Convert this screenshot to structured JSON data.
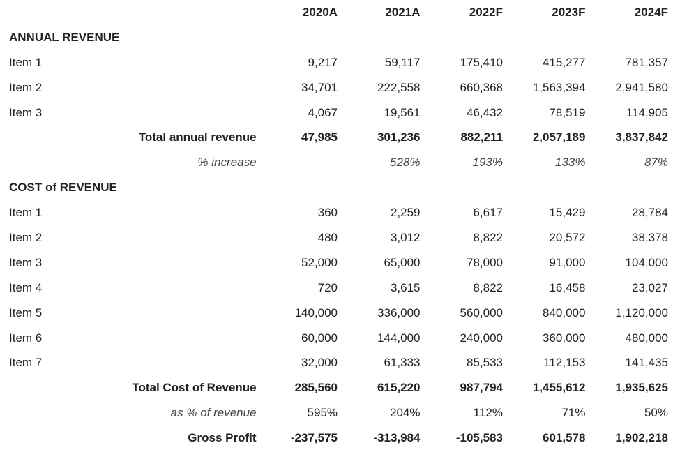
{
  "columns": [
    "2020A",
    "2021A",
    "2022F",
    "2023F",
    "2024F"
  ],
  "annual_revenue": {
    "header": "ANNUAL REVENUE",
    "items": [
      {
        "label": "Item 1",
        "values": [
          "9,217",
          "59,117",
          "175,410",
          "415,277",
          "781,357"
        ]
      },
      {
        "label": "Item 2",
        "values": [
          "34,701",
          "222,558",
          "660,368",
          "1,563,394",
          "2,941,580"
        ]
      },
      {
        "label": "Item 3",
        "values": [
          "4,067",
          "19,561",
          "46,432",
          "78,519",
          "114,905"
        ]
      }
    ],
    "total": {
      "label": "Total annual revenue",
      "values": [
        "47,985",
        "301,236",
        "882,211",
        "2,057,189",
        "3,837,842"
      ]
    },
    "increase": {
      "label": "% increase",
      "values": [
        "",
        "528%",
        "193%",
        "133%",
        "87%"
      ]
    }
  },
  "cost_of_revenue": {
    "header": "COST of REVENUE",
    "items": [
      {
        "label": "Item 1",
        "values": [
          "360",
          "2,259",
          "6,617",
          "15,429",
          "28,784"
        ]
      },
      {
        "label": "Item 2",
        "values": [
          "480",
          "3,012",
          "8,822",
          "20,572",
          "38,378"
        ]
      },
      {
        "label": "Item 3",
        "values": [
          "52,000",
          "65,000",
          "78,000",
          "91,000",
          "104,000"
        ]
      },
      {
        "label": "Item 4",
        "values": [
          "720",
          "3,615",
          "8,822",
          "16,458",
          "23,027"
        ]
      },
      {
        "label": "Item 5",
        "values": [
          "140,000",
          "336,000",
          "560,000",
          "840,000",
          "1,120,000"
        ]
      },
      {
        "label": "Item 6",
        "values": [
          "60,000",
          "144,000",
          "240,000",
          "360,000",
          "480,000"
        ]
      },
      {
        "label": "Item 7",
        "values": [
          "32,000",
          "61,333",
          "85,533",
          "112,153",
          "141,435"
        ]
      }
    ],
    "total": {
      "label": "Total Cost of Revenue",
      "values": [
        "285,560",
        "615,220",
        "987,794",
        "1,455,612",
        "1,935,625"
      ]
    },
    "pct_of_revenue": {
      "label": "as % of revenue",
      "values": [
        "595%",
        "204%",
        "112%",
        "71%",
        "50%"
      ]
    }
  },
  "gross_profit": {
    "label": "Gross Profit",
    "values": [
      "-237,575",
      "-313,984",
      "-105,583",
      "601,578",
      "1,902,218"
    ]
  }
}
